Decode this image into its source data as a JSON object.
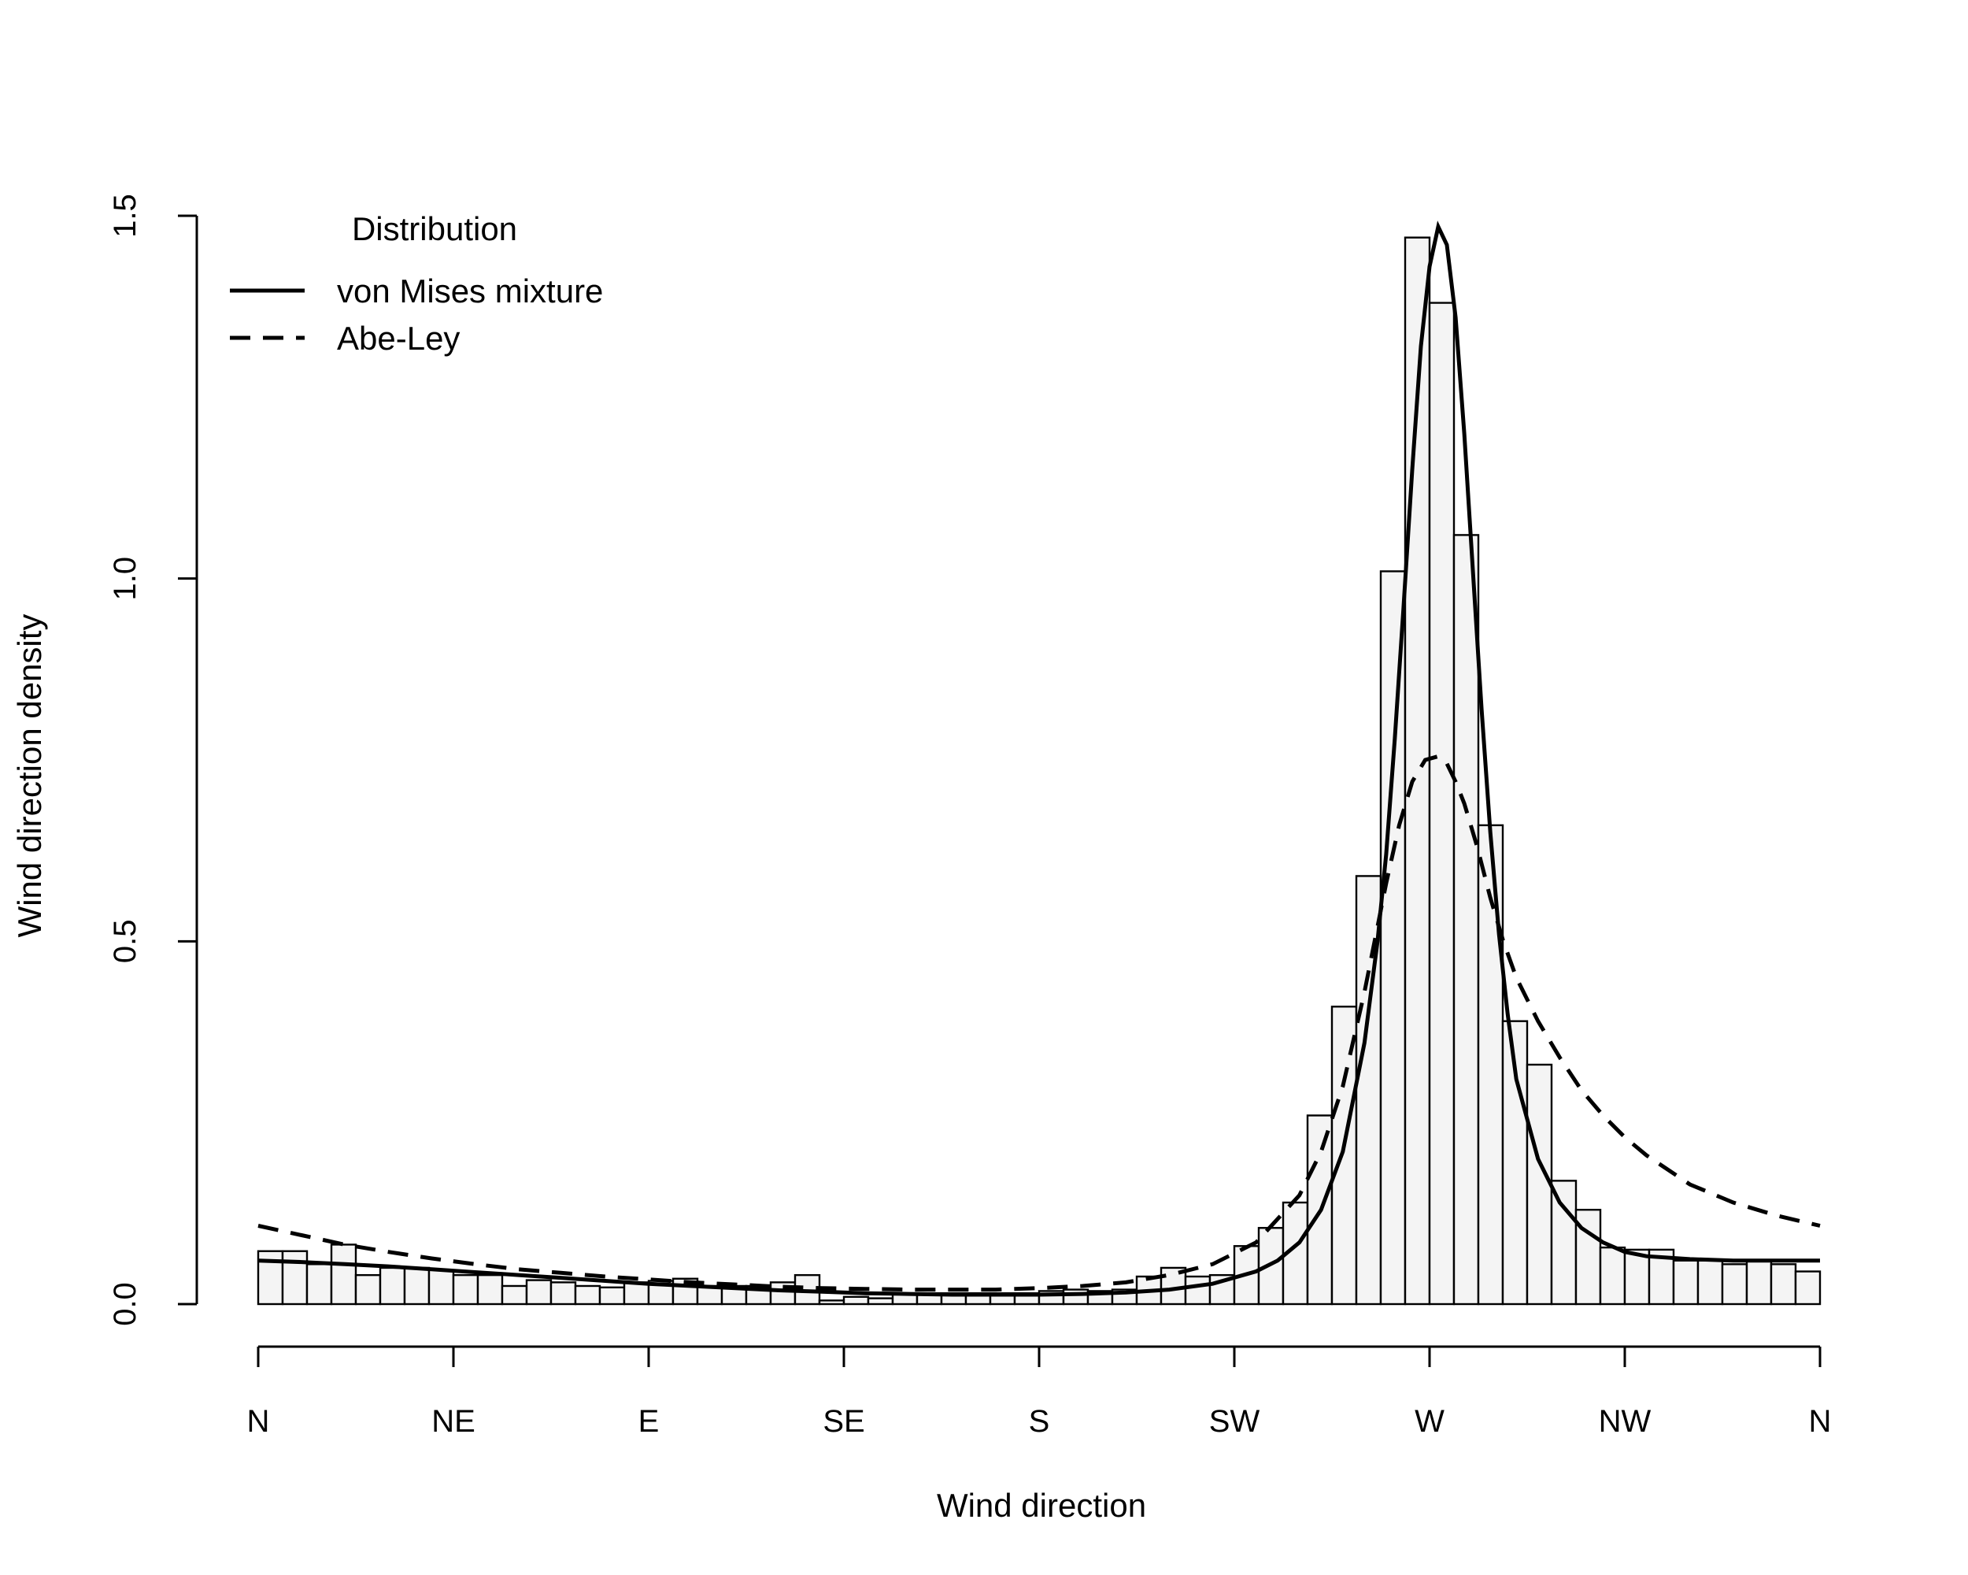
{
  "chart_data": {
    "type": "bar",
    "title": "",
    "xlabel": "Wind direction",
    "ylabel": "Wind direction density",
    "xlim": [
      0,
      360
    ],
    "ylim": [
      0,
      1.5
    ],
    "x_ticks": [
      {
        "value": 0,
        "label": "N"
      },
      {
        "value": 45,
        "label": "NE"
      },
      {
        "value": 90,
        "label": "E"
      },
      {
        "value": 135,
        "label": "SE"
      },
      {
        "value": 180,
        "label": "S"
      },
      {
        "value": 225,
        "label": "SW"
      },
      {
        "value": 270,
        "label": "W"
      },
      {
        "value": 315,
        "label": "NW"
      },
      {
        "value": 360,
        "label": "N"
      }
    ],
    "y_ticks": [
      {
        "value": 0.0,
        "label": "0.0"
      },
      {
        "value": 0.5,
        "label": "0.5"
      },
      {
        "value": 1.0,
        "label": "1.0"
      },
      {
        "value": 1.5,
        "label": "1.5"
      }
    ],
    "grid": false,
    "legend": {
      "title": "Distribution",
      "position": "top-left",
      "entries": [
        {
          "label": "von Mises mixture",
          "line": "solid"
        },
        {
          "label": "Abe-Ley",
          "line": "dashed"
        }
      ]
    },
    "histogram": {
      "bin_width": 5.625,
      "bin_start": 0,
      "values": [
        0.073,
        0.073,
        0.055,
        0.082,
        0.04,
        0.05,
        0.05,
        0.047,
        0.04,
        0.04,
        0.025,
        0.033,
        0.03,
        0.025,
        0.023,
        0.03,
        0.032,
        0.035,
        0.025,
        0.025,
        0.025,
        0.03,
        0.04,
        0.005,
        0.01,
        0.008,
        0.015,
        0.015,
        0.015,
        0.015,
        0.015,
        0.015,
        0.018,
        0.02,
        0.018,
        0.02,
        0.038,
        0.05,
        0.038,
        0.04,
        0.08,
        0.105,
        0.14,
        0.26,
        0.41,
        0.59,
        1.01,
        1.47,
        1.38,
        1.06,
        0.66,
        0.39,
        0.33,
        0.17,
        0.13,
        0.078,
        0.075,
        0.075,
        0.06,
        0.06,
        0.055,
        0.06,
        0.055,
        0.045
      ]
    },
    "series": [
      {
        "name": "von Mises mixture",
        "style": "solid",
        "x": [
          0,
          10,
          20,
          30,
          40,
          50,
          60,
          70,
          80,
          90,
          100,
          110,
          120,
          130,
          140,
          150,
          160,
          170,
          180,
          190,
          200,
          210,
          220,
          230,
          235,
          240,
          245,
          250,
          255,
          258,
          260,
          262,
          264,
          266,
          268,
          270,
          272,
          274,
          276,
          278,
          280,
          282,
          284,
          286,
          288,
          290,
          295,
          300,
          305,
          310,
          315,
          320,
          330,
          340,
          350,
          360
        ],
        "values": [
          0.06,
          0.058,
          0.055,
          0.052,
          0.048,
          0.044,
          0.04,
          0.036,
          0.032,
          0.028,
          0.025,
          0.022,
          0.019,
          0.017,
          0.015,
          0.014,
          0.013,
          0.013,
          0.013,
          0.014,
          0.016,
          0.02,
          0.028,
          0.045,
          0.06,
          0.085,
          0.13,
          0.21,
          0.36,
          0.5,
          0.62,
          0.78,
          0.96,
          1.15,
          1.32,
          1.43,
          1.485,
          1.46,
          1.36,
          1.2,
          1.01,
          0.82,
          0.65,
          0.51,
          0.4,
          0.31,
          0.2,
          0.14,
          0.105,
          0.085,
          0.072,
          0.066,
          0.062,
          0.06,
          0.06,
          0.06
        ]
      },
      {
        "name": "Abe-Ley",
        "style": "dashed",
        "x": [
          0,
          10,
          20,
          30,
          40,
          50,
          60,
          70,
          80,
          90,
          100,
          110,
          120,
          130,
          140,
          150,
          160,
          170,
          180,
          190,
          200,
          210,
          220,
          230,
          240,
          245,
          250,
          255,
          260,
          263,
          266,
          269,
          272,
          274,
          276,
          278,
          281,
          284,
          287,
          290,
          295,
          300,
          305,
          310,
          315,
          320,
          330,
          340,
          350,
          360
        ],
        "values": [
          0.108,
          0.095,
          0.082,
          0.072,
          0.063,
          0.055,
          0.048,
          0.043,
          0.038,
          0.034,
          0.03,
          0.027,
          0.024,
          0.022,
          0.021,
          0.02,
          0.02,
          0.02,
          0.022,
          0.025,
          0.03,
          0.04,
          0.055,
          0.085,
          0.15,
          0.21,
          0.3,
          0.43,
          0.58,
          0.66,
          0.72,
          0.75,
          0.755,
          0.745,
          0.72,
          0.69,
          0.63,
          0.56,
          0.5,
          0.45,
          0.39,
          0.34,
          0.295,
          0.26,
          0.23,
          0.205,
          0.165,
          0.14,
          0.122,
          0.108
        ]
      }
    ]
  }
}
